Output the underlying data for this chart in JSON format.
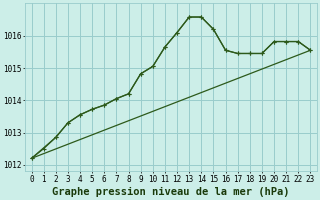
{
  "title": "Graphe pression niveau de la mer (hPa)",
  "bg_color": "#cceee8",
  "grid_color": "#99cccc",
  "line_color": "#2d5a1b",
  "xlim": [
    -0.5,
    23.5
  ],
  "ylim": [
    1011.8,
    1017.0
  ],
  "yticks": [
    1012,
    1013,
    1014,
    1015,
    1016
  ],
  "xticks": [
    0,
    1,
    2,
    3,
    4,
    5,
    6,
    7,
    8,
    9,
    10,
    11,
    12,
    13,
    14,
    15,
    16,
    17,
    18,
    19,
    20,
    21,
    22,
    23
  ],
  "series1_x": [
    0,
    1,
    2,
    3,
    4,
    5,
    6,
    7,
    8,
    9,
    10,
    11,
    12,
    13,
    14,
    15,
    16,
    17,
    18,
    19,
    20,
    21,
    22,
    23
  ],
  "series1_y": [
    1012.2,
    1012.5,
    1012.85,
    1013.3,
    1013.55,
    1013.72,
    1013.85,
    1014.05,
    1014.2,
    1014.82,
    1015.05,
    1015.65,
    1016.1,
    1016.58,
    1016.58,
    1016.2,
    1015.55,
    1015.45,
    1015.45,
    1015.45,
    1015.82,
    1015.82,
    1015.82,
    1015.55
  ],
  "series2_x": [
    0,
    2,
    3,
    4,
    5,
    6,
    7,
    8,
    9,
    10,
    11,
    12,
    13,
    14,
    15,
    16,
    17,
    18,
    19,
    20,
    21,
    22,
    23
  ],
  "series2_y": [
    1012.2,
    1012.85,
    1013.3,
    1013.55,
    1013.72,
    1013.85,
    1014.05,
    1014.2,
    1014.82,
    1015.05,
    1015.65,
    1016.1,
    1016.58,
    1016.58,
    1016.2,
    1015.55,
    1015.45,
    1015.45,
    1015.45,
    1015.82,
    1015.82,
    1015.82,
    1015.55
  ],
  "series3_x": [
    0,
    23
  ],
  "series3_y": [
    1012.2,
    1015.55
  ],
  "tick_fontsize": 5.5,
  "title_fontsize": 7.5
}
